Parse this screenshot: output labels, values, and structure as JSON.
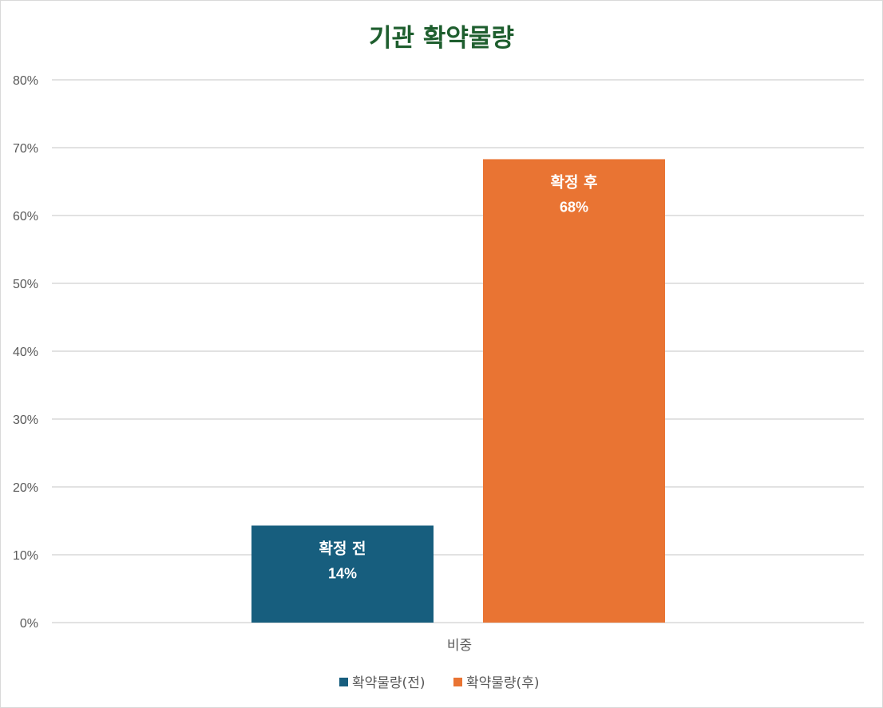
{
  "chart_data": {
    "type": "bar",
    "title": "기관 확약물량",
    "categories": [
      "비중"
    ],
    "ylim": [
      0,
      0.8
    ],
    "yticks": [
      0,
      0.1,
      0.2,
      0.3,
      0.4,
      0.5,
      0.6,
      0.7,
      0.8
    ],
    "ytick_labels": [
      "0%",
      "10%",
      "20%",
      "30%",
      "40%",
      "50%",
      "60%",
      "70%",
      "80%"
    ],
    "grid": true,
    "legend_position": "bottom",
    "series": [
      {
        "name": "확약물량(전)",
        "values": [
          0.143
        ],
        "color": "#175e7e",
        "data_label_name": "확정 전",
        "data_label_value": "14%"
      },
      {
        "name": "확약물량(후)",
        "values": [
          0.683
        ],
        "color": "#e97433",
        "data_label_name": "확정 후",
        "data_label_value": "68%"
      }
    ]
  }
}
